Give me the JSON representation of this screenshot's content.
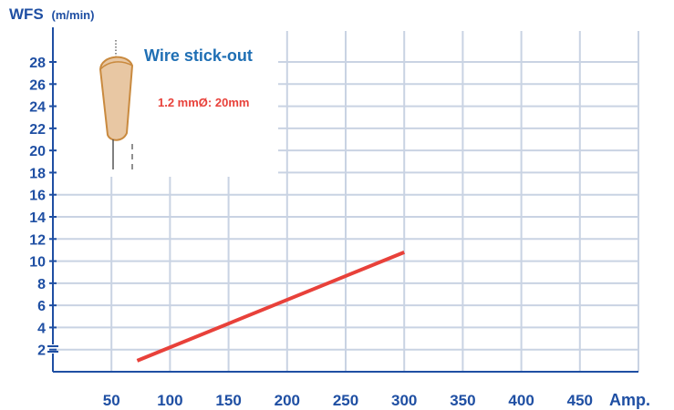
{
  "chart_data": {
    "type": "line",
    "title": "",
    "ylabel": "WFS",
    "ylabel_unit": "(m/min)",
    "xlabel": "Amp.",
    "x_ticks": [
      50,
      100,
      150,
      200,
      250,
      300,
      350,
      400,
      450
    ],
    "y_ticks": [
      2,
      4,
      6,
      8,
      10,
      12,
      14,
      16,
      18,
      20,
      22,
      24,
      26,
      28
    ],
    "xlim": [
      0,
      500
    ],
    "ylim": [
      0,
      30
    ],
    "y_axis_break": true,
    "grid": true,
    "series": [
      {
        "color": "#e8413a",
        "x": [
          72,
          300
        ],
        "y": [
          1,
          10.8
        ]
      }
    ],
    "annotations": {
      "title": "Wire stick-out",
      "note": "1.2 mmØ: 20mm"
    }
  },
  "colors": {
    "axis": "#1f4fa3",
    "grid": "#c9d3e3",
    "line": "#e8413a",
    "electrode_fill": "#e8c7a3",
    "electrode_stroke": "#c98a3f",
    "inset_title": "#1f6fb4"
  }
}
